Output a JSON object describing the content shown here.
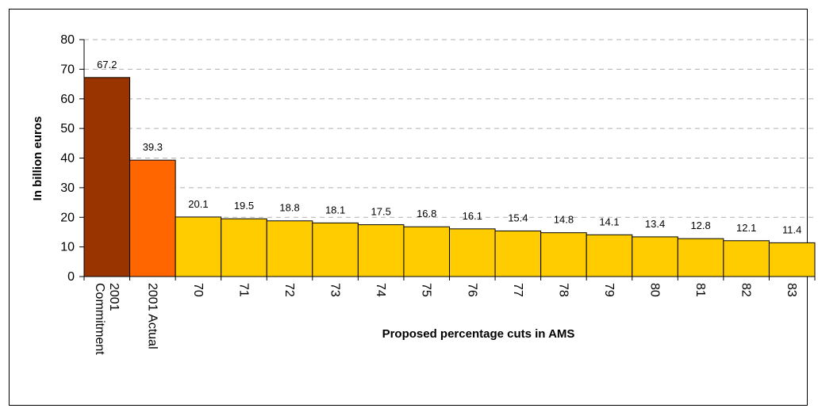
{
  "chart_data": {
    "type": "bar",
    "title": "",
    "xlabel": "Proposed percentage cuts in AMS",
    "ylabel": "In billion euros",
    "ylim": [
      0,
      80
    ],
    "yticks": [
      0,
      10,
      20,
      30,
      40,
      50,
      60,
      70,
      80
    ],
    "grid": true,
    "categories": [
      [
        "2001",
        "Commitment"
      ],
      [
        "2001 Actual"
      ],
      [
        "70"
      ],
      [
        "71"
      ],
      [
        "72"
      ],
      [
        "73"
      ],
      [
        "74"
      ],
      [
        "75"
      ],
      [
        "76"
      ],
      [
        "77"
      ],
      [
        "78"
      ],
      [
        "79"
      ],
      [
        "80"
      ],
      [
        "81"
      ],
      [
        "82"
      ],
      [
        "83"
      ]
    ],
    "values": [
      67.2,
      39.3,
      20.1,
      19.5,
      18.8,
      18.1,
      17.5,
      16.8,
      16.1,
      15.4,
      14.8,
      14.1,
      13.4,
      12.8,
      12.1,
      11.4
    ],
    "value_labels": [
      "67.2",
      "39.3",
      "20.1",
      "19.5",
      "18.8",
      "18.1",
      "17.5",
      "16.8",
      "16.1",
      "15.4",
      "14.8",
      "14.1",
      "13.4",
      "12.8",
      "12.1",
      "11.4"
    ],
    "colors": [
      "#993300",
      "#FF6600",
      "#FFCC00",
      "#FFCC00",
      "#FFCC00",
      "#FFCC00",
      "#FFCC00",
      "#FFCC00",
      "#FFCC00",
      "#FFCC00",
      "#FFCC00",
      "#FFCC00",
      "#FFCC00",
      "#FFCC00",
      "#FFCC00",
      "#FFCC00"
    ]
  }
}
